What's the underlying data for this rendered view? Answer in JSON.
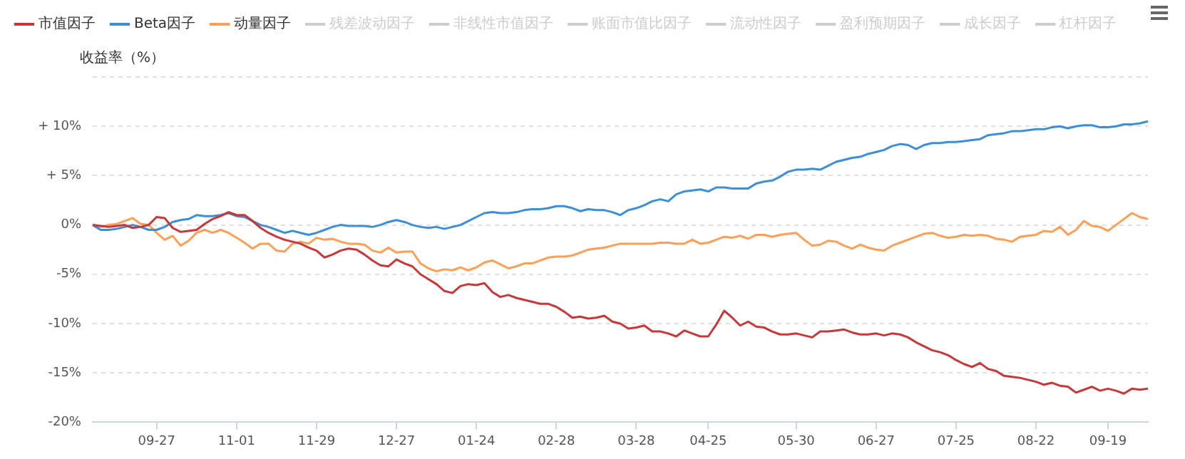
{
  "chart_data": {
    "type": "line",
    "ylabel": "收益率（%）",
    "legend": "top left",
    "grid": "y",
    "marker": "none",
    "line_style": "solid",
    "categories": [
      null,
      null,
      null,
      null,
      null,
      null,
      null,
      null,
      "09-27",
      null,
      null,
      null,
      null,
      null,
      null,
      null,
      null,
      null,
      "11-01",
      null,
      null,
      null,
      null,
      null,
      null,
      null,
      null,
      null,
      "11-29",
      null,
      null,
      null,
      null,
      null,
      null,
      null,
      null,
      null,
      "12-27",
      null,
      null,
      null,
      null,
      null,
      null,
      null,
      null,
      null,
      "01-24",
      null,
      null,
      null,
      null,
      null,
      null,
      null,
      null,
      null,
      "02-28",
      null,
      null,
      null,
      null,
      null,
      null,
      null,
      null,
      null,
      "03-28",
      null,
      null,
      null,
      null,
      null,
      null,
      null,
      null,
      "04-25",
      null,
      null,
      null,
      null,
      null,
      null,
      null,
      null,
      null,
      null,
      "05-30",
      null,
      null,
      null,
      null,
      null,
      null,
      null,
      null,
      null,
      "06-27",
      null,
      null,
      null,
      null,
      null,
      null,
      null,
      null,
      null,
      "07-25",
      null,
      null,
      null,
      null,
      null,
      null,
      null,
      null,
      null,
      "08-22",
      null,
      null,
      null,
      null,
      null,
      null,
      null,
      null,
      "09-19",
      null,
      null,
      null,
      null,
      null
    ],
    "ylim": [
      -20,
      15
    ],
    "yticks": [
      {
        "value": -20,
        "label": "-20%"
      },
      {
        "value": -15,
        "label": "-15%"
      },
      {
        "value": -10,
        "label": "-10%"
      },
      {
        "value": -5,
        "label": "-5%"
      },
      {
        "value": 0,
        "label": "0%"
      },
      {
        "value": 5,
        "label": "+ 5%"
      },
      {
        "value": 10,
        "label": "+ 10%"
      },
      {
        "value": 15,
        "label": null
      }
    ],
    "series": [
      {
        "name": "市值因子",
        "color": "#c8373a",
        "values": [
          0,
          -0.1,
          -0.2,
          -0.1,
          0,
          -0.3,
          -0.2,
          0,
          0.8,
          0.7,
          -0.3,
          -0.7,
          -0.6,
          -0.5,
          0.1,
          0.6,
          0.9,
          1.3,
          1.0,
          1.0,
          0.4,
          -0.3,
          -0.8,
          -1.2,
          -1.5,
          -1.7,
          -1.9,
          -2.3,
          -2.6,
          -3.3,
          -3.0,
          -2.6,
          -2.4,
          -2.5,
          -3.0,
          -3.6,
          -4.1,
          -4.2,
          -3.5,
          -3.9,
          -4.2,
          -5.0,
          -5.5,
          -6.0,
          -6.7,
          -6.9,
          -6.2,
          -6.0,
          -6.1,
          -5.9,
          -6.8,
          -7.3,
          -7.1,
          -7.4,
          -7.6,
          -7.8,
          -8.0,
          -8.0,
          -8.3,
          -8.8,
          -9.4,
          -9.3,
          -9.5,
          -9.4,
          -9.2,
          -9.8,
          -10.0,
          -10.5,
          -10.4,
          -10.2,
          -10.8,
          -10.8,
          -11.0,
          -11.3,
          -10.7,
          -11.0,
          -11.3,
          -11.3,
          -10.1,
          -8.7,
          -9.4,
          -10.2,
          -9.8,
          -10.3,
          -10.4,
          -10.8,
          -11.1,
          -11.1,
          -11.0,
          -11.2,
          -11.4,
          -10.8,
          -10.8,
          -10.7,
          -10.6,
          -10.9,
          -11.1,
          -11.1,
          -11.0,
          -11.2,
          -11.0,
          -11.1,
          -11.4,
          -11.9,
          -12.3,
          -12.7,
          -12.9,
          -13.2,
          -13.7,
          -14.1,
          -14.4,
          -14.0,
          -14.6,
          -14.8,
          -15.3,
          -15.4,
          -15.5,
          -15.7,
          -15.9,
          -16.2,
          -16.0,
          -16.3,
          -16.4,
          -17.0,
          -16.7,
          -16.4,
          -16.8,
          -16.6,
          -16.8,
          -17.1,
          -16.6,
          -16.7,
          -16.6
        ]
      },
      {
        "name": "Beta因子",
        "color": "#3b8fd9",
        "values": [
          0,
          -0.5,
          -0.5,
          -0.4,
          -0.2,
          0,
          -0.2,
          -0.5,
          -0.5,
          -0.2,
          0.3,
          0.5,
          0.6,
          1.0,
          0.9,
          0.9,
          1.0,
          1.2,
          0.9,
          0.8,
          0.4,
          0,
          -0.2,
          -0.5,
          -0.8,
          -0.6,
          -0.8,
          -1.0,
          -0.8,
          -0.5,
          -0.2,
          0,
          -0.1,
          -0.1,
          -0.1,
          -0.2,
          0,
          0.3,
          0.5,
          0.3,
          0,
          -0.2,
          -0.3,
          -0.2,
          -0.4,
          -0.2,
          0,
          0.4,
          0.8,
          1.2,
          1.3,
          1.2,
          1.2,
          1.3,
          1.5,
          1.6,
          1.6,
          1.7,
          1.9,
          1.9,
          1.7,
          1.4,
          1.6,
          1.5,
          1.5,
          1.3,
          1.0,
          1.5,
          1.7,
          2.0,
          2.4,
          2.6,
          2.4,
          3.1,
          3.4,
          3.5,
          3.6,
          3.4,
          3.8,
          3.8,
          3.7,
          3.7,
          3.7,
          4.2,
          4.4,
          4.5,
          4.9,
          5.4,
          5.6,
          5.6,
          5.7,
          5.6,
          6.0,
          6.4,
          6.6,
          6.8,
          6.9,
          7.2,
          7.4,
          7.6,
          8.0,
          8.2,
          8.1,
          7.7,
          8.1,
          8.3,
          8.3,
          8.4,
          8.4,
          8.5,
          8.6,
          8.7,
          9.1,
          9.2,
          9.3,
          9.5,
          9.5,
          9.6,
          9.7,
          9.7,
          9.9,
          10.0,
          9.8,
          10.0,
          10.1,
          10.1,
          9.9,
          9.9,
          10.0,
          10.2,
          10.2,
          10.3,
          10.5
        ]
      },
      {
        "name": "动量因子",
        "color": "#ff9f55",
        "values": [
          0,
          -0.2,
          0,
          0.1,
          0.4,
          0.7,
          0.1,
          0,
          -0.8,
          -1.5,
          -1.1,
          -2.1,
          -1.6,
          -0.8,
          -0.5,
          -0.8,
          -0.5,
          -0.8,
          -1.3,
          -1.8,
          -2.4,
          -1.9,
          -1.9,
          -2.6,
          -2.7,
          -1.9,
          -1.7,
          -1.9,
          -1.3,
          -1.5,
          -1.4,
          -1.7,
          -1.9,
          -1.9,
          -2.0,
          -2.6,
          -2.8,
          -2.3,
          -2.8,
          -2.7,
          -2.7,
          -3.9,
          -4.4,
          -4.7,
          -4.5,
          -4.6,
          -4.3,
          -4.6,
          -4.3,
          -3.8,
          -3.6,
          -4.0,
          -4.4,
          -4.2,
          -3.9,
          -3.9,
          -3.6,
          -3.3,
          -3.2,
          -3.2,
          -3.1,
          -2.8,
          -2.5,
          -2.4,
          -2.3,
          -2.1,
          -1.9,
          -1.9,
          -1.9,
          -1.9,
          -1.9,
          -1.8,
          -1.8,
          -1.9,
          -1.9,
          -1.5,
          -1.9,
          -1.8,
          -1.5,
          -1.2,
          -1.3,
          -1.1,
          -1.4,
          -1.0,
          -1.0,
          -1.2,
          -1.0,
          -0.9,
          -0.8,
          -1.5,
          -2.1,
          -2.0,
          -1.6,
          -1.7,
          -2.1,
          -2.4,
          -2.0,
          -2.3,
          -2.5,
          -2.6,
          -2.1,
          -1.8,
          -1.5,
          -1.2,
          -0.9,
          -0.8,
          -1.1,
          -1.3,
          -1.2,
          -1.0,
          -1.1,
          -1.0,
          -1.1,
          -1.4,
          -1.5,
          -1.7,
          -1.2,
          -1.1,
          -1.0,
          -0.6,
          -0.7,
          -0.2,
          -1.0,
          -0.5,
          0.4,
          -0.1,
          -0.2,
          -0.6,
          0,
          0.6,
          1.2,
          0.8,
          0.6
        ]
      },
      {
        "name": "残差波动因子",
        "color": "#cccccc",
        "values": [
          null,
          null,
          null,
          null,
          null,
          null,
          null,
          null,
          null,
          null,
          null,
          null,
          null,
          null,
          null,
          null,
          null,
          null,
          null,
          null,
          null,
          null,
          null,
          null,
          null,
          null,
          null,
          null,
          null,
          null,
          null,
          null,
          null,
          null,
          null,
          null,
          null,
          null,
          null,
          null,
          null,
          null,
          null,
          null,
          null,
          null,
          null,
          null,
          null,
          null,
          null,
          null,
          null,
          null,
          null,
          null,
          null,
          null,
          null,
          null,
          null,
          null,
          null,
          null,
          null,
          null,
          null,
          null,
          null,
          null,
          null,
          null,
          null,
          null,
          null,
          null,
          null,
          null,
          null,
          null,
          null,
          null,
          null,
          null,
          null,
          null,
          null,
          null,
          null,
          null,
          null,
          null,
          null,
          null,
          null,
          null,
          null,
          null,
          null,
          null,
          null,
          null,
          null,
          null,
          null,
          null,
          null,
          null,
          null,
          null,
          null,
          null,
          null,
          null,
          null,
          null,
          null,
          null,
          null,
          null,
          null,
          null,
          null,
          null,
          null,
          null,
          null,
          null,
          null,
          null,
          null,
          null,
          null
        ]
      },
      {
        "name": "非线性市值因子",
        "color": "#cccccc",
        "values": [
          null,
          null,
          null,
          null,
          null,
          null,
          null,
          null,
          null,
          null,
          null,
          null,
          null,
          null,
          null,
          null,
          null,
          null,
          null,
          null,
          null,
          null,
          null,
          null,
          null,
          null,
          null,
          null,
          null,
          null,
          null,
          null,
          null,
          null,
          null,
          null,
          null,
          null,
          null,
          null,
          null,
          null,
          null,
          null,
          null,
          null,
          null,
          null,
          null,
          null,
          null,
          null,
          null,
          null,
          null,
          null,
          null,
          null,
          null,
          null,
          null,
          null,
          null,
          null,
          null,
          null,
          null,
          null,
          null,
          null,
          null,
          null,
          null,
          null,
          null,
          null,
          null,
          null,
          null,
          null,
          null,
          null,
          null,
          null,
          null,
          null,
          null,
          null,
          null,
          null,
          null,
          null,
          null,
          null,
          null,
          null,
          null,
          null,
          null,
          null,
          null,
          null,
          null,
          null,
          null,
          null,
          null,
          null,
          null,
          null,
          null,
          null,
          null,
          null,
          null,
          null,
          null,
          null,
          null,
          null,
          null,
          null,
          null,
          null,
          null,
          null,
          null,
          null,
          null,
          null,
          null,
          null,
          null
        ]
      },
      {
        "name": "账面市值比因子",
        "color": "#cccccc",
        "values": [
          null,
          null,
          null,
          null,
          null,
          null,
          null,
          null,
          null,
          null,
          null,
          null,
          null,
          null,
          null,
          null,
          null,
          null,
          null,
          null,
          null,
          null,
          null,
          null,
          null,
          null,
          null,
          null,
          null,
          null,
          null,
          null,
          null,
          null,
          null,
          null,
          null,
          null,
          null,
          null,
          null,
          null,
          null,
          null,
          null,
          null,
          null,
          null,
          null,
          null,
          null,
          null,
          null,
          null,
          null,
          null,
          null,
          null,
          null,
          null,
          null,
          null,
          null,
          null,
          null,
          null,
          null,
          null,
          null,
          null,
          null,
          null,
          null,
          null,
          null,
          null,
          null,
          null,
          null,
          null,
          null,
          null,
          null,
          null,
          null,
          null,
          null,
          null,
          null,
          null,
          null,
          null,
          null,
          null,
          null,
          null,
          null,
          null,
          null,
          null,
          null,
          null,
          null,
          null,
          null,
          null,
          null,
          null,
          null,
          null,
          null,
          null,
          null,
          null,
          null,
          null,
          null,
          null,
          null,
          null,
          null,
          null,
          null,
          null,
          null,
          null,
          null,
          null,
          null,
          null,
          null,
          null,
          null
        ]
      },
      {
        "name": "流动性因子",
        "color": "#cccccc",
        "values": [
          null,
          null,
          null,
          null,
          null,
          null,
          null,
          null,
          null,
          null,
          null,
          null,
          null,
          null,
          null,
          null,
          null,
          null,
          null,
          null,
          null,
          null,
          null,
          null,
          null,
          null,
          null,
          null,
          null,
          null,
          null,
          null,
          null,
          null,
          null,
          null,
          null,
          null,
          null,
          null,
          null,
          null,
          null,
          null,
          null,
          null,
          null,
          null,
          null,
          null,
          null,
          null,
          null,
          null,
          null,
          null,
          null,
          null,
          null,
          null,
          null,
          null,
          null,
          null,
          null,
          null,
          null,
          null,
          null,
          null,
          null,
          null,
          null,
          null,
          null,
          null,
          null,
          null,
          null,
          null,
          null,
          null,
          null,
          null,
          null,
          null,
          null,
          null,
          null,
          null,
          null,
          null,
          null,
          null,
          null,
          null,
          null,
          null,
          null,
          null,
          null,
          null,
          null,
          null,
          null,
          null,
          null,
          null,
          null,
          null,
          null,
          null,
          null,
          null,
          null,
          null,
          null,
          null,
          null,
          null,
          null,
          null,
          null,
          null,
          null,
          null,
          null,
          null,
          null,
          null,
          null,
          null,
          null
        ]
      },
      {
        "name": "盈利预期因子",
        "color": "#cccccc",
        "values": [
          null,
          null,
          null,
          null,
          null,
          null,
          null,
          null,
          null,
          null,
          null,
          null,
          null,
          null,
          null,
          null,
          null,
          null,
          null,
          null,
          null,
          null,
          null,
          null,
          null,
          null,
          null,
          null,
          null,
          null,
          null,
          null,
          null,
          null,
          null,
          null,
          null,
          null,
          null,
          null,
          null,
          null,
          null,
          null,
          null,
          null,
          null,
          null,
          null,
          null,
          null,
          null,
          null,
          null,
          null,
          null,
          null,
          null,
          null,
          null,
          null,
          null,
          null,
          null,
          null,
          null,
          null,
          null,
          null,
          null,
          null,
          null,
          null,
          null,
          null,
          null,
          null,
          null,
          null,
          null,
          null,
          null,
          null,
          null,
          null,
          null,
          null,
          null,
          null,
          null,
          null,
          null,
          null,
          null,
          null,
          null,
          null,
          null,
          null,
          null,
          null,
          null,
          null,
          null,
          null,
          null,
          null,
          null,
          null,
          null,
          null,
          null,
          null,
          null,
          null,
          null,
          null,
          null,
          null,
          null,
          null,
          null,
          null,
          null,
          null,
          null,
          null,
          null,
          null,
          null,
          null,
          null,
          null
        ]
      },
      {
        "name": "成长因子",
        "color": "#cccccc",
        "values": [
          null,
          null,
          null,
          null,
          null,
          null,
          null,
          null,
          null,
          null,
          null,
          null,
          null,
          null,
          null,
          null,
          null,
          null,
          null,
          null,
          null,
          null,
          null,
          null,
          null,
          null,
          null,
          null,
          null,
          null,
          null,
          null,
          null,
          null,
          null,
          null,
          null,
          null,
          null,
          null,
          null,
          null,
          null,
          null,
          null,
          null,
          null,
          null,
          null,
          null,
          null,
          null,
          null,
          null,
          null,
          null,
          null,
          null,
          null,
          null,
          null,
          null,
          null,
          null,
          null,
          null,
          null,
          null,
          null,
          null,
          null,
          null,
          null,
          null,
          null,
          null,
          null,
          null,
          null,
          null,
          null,
          null,
          null,
          null,
          null,
          null,
          null,
          null,
          null,
          null,
          null,
          null,
          null,
          null,
          null,
          null,
          null,
          null,
          null,
          null,
          null,
          null,
          null,
          null,
          null,
          null,
          null,
          null,
          null,
          null,
          null,
          null,
          null,
          null,
          null,
          null,
          null,
          null,
          null,
          null,
          null,
          null,
          null,
          null,
          null,
          null,
          null,
          null,
          null,
          null,
          null,
          null,
          null
        ]
      },
      {
        "name": "杠杆因子",
        "color": "#cccccc",
        "values": [
          null,
          null,
          null,
          null,
          null,
          null,
          null,
          null,
          null,
          null,
          null,
          null,
          null,
          null,
          null,
          null,
          null,
          null,
          null,
          null,
          null,
          null,
          null,
          null,
          null,
          null,
          null,
          null,
          null,
          null,
          null,
          null,
          null,
          null,
          null,
          null,
          null,
          null,
          null,
          null,
          null,
          null,
          null,
          null,
          null,
          null,
          null,
          null,
          null,
          null,
          null,
          null,
          null,
          null,
          null,
          null,
          null,
          null,
          null,
          null,
          null,
          null,
          null,
          null,
          null,
          null,
          null,
          null,
          null,
          null,
          null,
          null,
          null,
          null,
          null,
          null,
          null,
          null,
          null,
          null,
          null,
          null,
          null,
          null,
          null,
          null,
          null,
          null,
          null,
          null,
          null,
          null,
          null,
          null,
          null,
          null,
          null,
          null,
          null,
          null,
          null,
          null,
          null,
          null,
          null,
          null,
          null,
          null,
          null,
          null,
          null,
          null,
          null,
          null,
          null,
          null,
          null,
          null,
          null,
          null,
          null,
          null,
          null,
          null,
          null,
          null,
          null,
          null,
          null,
          null,
          null,
          null,
          null
        ]
      }
    ]
  }
}
